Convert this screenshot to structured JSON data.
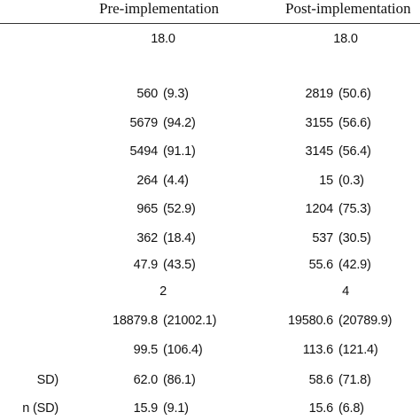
{
  "table": {
    "header": [
      "Pre-implementation",
      "Post-implementation"
    ],
    "rows": [
      {
        "pre": "18.0",
        "post": "18.0"
      },
      {
        "pre": "560",
        "pre_sd": "(9.3)",
        "post": "2819",
        "post_sd": "(50.6)"
      },
      {
        "pre": "5679",
        "pre_sd": "(94.2)",
        "post": "3155",
        "post_sd": "(56.6)"
      },
      {
        "pre": "5494",
        "pre_sd": "(91.1)",
        "post": "3145",
        "post_sd": "(56.4)"
      },
      {
        "pre": "264",
        "pre_sd": "(4.4)",
        "post": "15",
        "post_sd": "(0.3)"
      },
      {
        "pre": "965",
        "pre_sd": "(52.9)",
        "post": "1204",
        "post_sd": "(75.3)"
      },
      {
        "pre": "362",
        "pre_sd": "(18.4)",
        "post": "537",
        "post_sd": "(30.5)"
      },
      {
        "pre": "47.9",
        "pre_sd": "(43.5)",
        "post": "55.6",
        "post_sd": "(42.9)"
      },
      {
        "pre": "2",
        "post": "4"
      },
      {
        "pre": "18879.8",
        "pre_sd": "(21002.1)",
        "post": "19580.6",
        "post_sd": "(20789.9)"
      },
      {
        "pre": "99.5",
        "pre_sd": "(106.4)",
        "post": "113.6",
        "post_sd": "(121.4)"
      },
      {
        "label": "SD)",
        "pre": "62.0",
        "pre_sd": "(86.1)",
        "post": "58.6",
        "post_sd": "(71.8)"
      },
      {
        "label": "n (SD)",
        "pre": "15.9",
        "pre_sd": "(9.1)",
        "post": "15.6",
        "post_sd": "(6.8)"
      }
    ]
  }
}
